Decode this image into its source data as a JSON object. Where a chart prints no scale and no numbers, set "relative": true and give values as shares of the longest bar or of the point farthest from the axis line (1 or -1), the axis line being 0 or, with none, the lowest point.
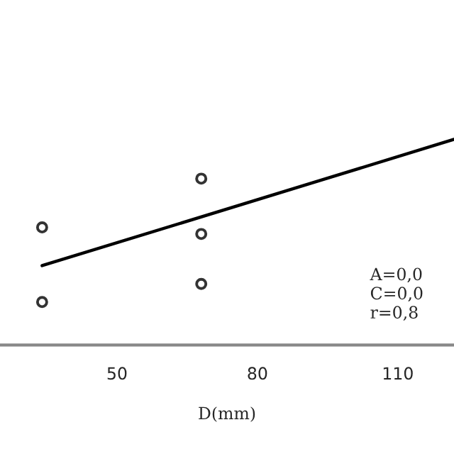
{
  "chart_data": {
    "type": "scatter",
    "relative": true,
    "xlabel": "D(mm)",
    "xlim": [
      25,
      122
    ],
    "xticks": [
      50,
      80,
      110
    ],
    "series": [
      {
        "color": "#333333",
        "marker": "circle",
        "x": [
          34,
          34,
          68,
          68,
          68
        ],
        "values": [
          0.572,
          0.209,
          0.809,
          0.54,
          0.297
        ]
      },
      {
        "type": "line",
        "color": "#000000",
        "line_style": "solid",
        "x": [
          34,
          122
        ],
        "values": [
          0.386,
          1.0
        ]
      }
    ],
    "annotations": [
      "A=0,0",
      "C=0,0",
      "r=0,8"
    ],
    "grid": false,
    "legend": false
  }
}
